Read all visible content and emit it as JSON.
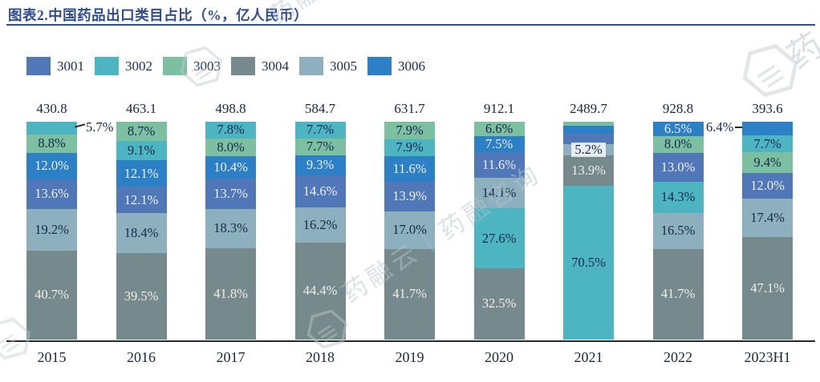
{
  "header": {
    "title": "图表2.中国药品出口类目占比（%，亿人民币）"
  },
  "legend": {
    "items": [
      {
        "label": "3001",
        "color": "#5078B9"
      },
      {
        "label": "3002",
        "color": "#4DB4C1"
      },
      {
        "label": "3003",
        "color": "#7CBFA1"
      },
      {
        "label": "3004",
        "color": "#76898C"
      },
      {
        "label": "3005",
        "color": "#8DB0BE"
      },
      {
        "label": "3006",
        "color": "#2C80C6"
      }
    ]
  },
  "watermark": {
    "brand_text": "药融云｜药融咨询",
    "corner_text": "药"
  },
  "chart_data": {
    "type": "bar",
    "subtype": "stacked-100-percent",
    "title": "中国药品出口类目占比",
    "unit": "%，亿人民币",
    "legend_position": "top",
    "grid": false,
    "categories": [
      "2015",
      "2016",
      "2017",
      "2018",
      "2019",
      "2020",
      "2021",
      "2022",
      "2023H1"
    ],
    "totals": [
      430.8,
      463.1,
      498.8,
      584.7,
      631.7,
      912.1,
      2489.7,
      928.8,
      393.6
    ],
    "series": [
      {
        "name": "3001",
        "color": "#5078B9",
        "values": [
          13.6,
          12.1,
          13.7,
          14.6,
          13.9,
          11.6,
          4.9,
          13.0,
          12.0
        ]
      },
      {
        "name": "3002",
        "color": "#4DB4C1",
        "values": [
          5.7,
          9.1,
          7.8,
          7.7,
          7.9,
          27.6,
          70.5,
          14.3,
          7.7
        ]
      },
      {
        "name": "3003",
        "color": "#7CBFA1",
        "values": [
          8.8,
          8.7,
          8.0,
          7.7,
          7.9,
          6.6,
          2.0,
          8.0,
          9.4
        ]
      },
      {
        "name": "3004",
        "color": "#76898C",
        "values": [
          40.7,
          39.5,
          41.8,
          44.4,
          41.7,
          32.5,
          13.9,
          41.7,
          47.1
        ]
      },
      {
        "name": "3005",
        "color": "#8DB0BE",
        "values": [
          19.2,
          18.4,
          18.3,
          16.2,
          17.0,
          14.1,
          5.2,
          16.5,
          17.4
        ]
      },
      {
        "name": "3006",
        "color": "#2C80C6",
        "values": [
          12.0,
          12.1,
          10.4,
          9.3,
          11.6,
          7.5,
          3.5,
          6.5,
          6.4
        ]
      }
    ],
    "stack_order_top_to_bottom": {
      "2015": [
        "3002",
        "3003",
        "3006",
        "3001",
        "3005",
        "3004"
      ],
      "2016": [
        "3003",
        "3002",
        "3006",
        "3001",
        "3005",
        "3004"
      ],
      "2017": [
        "3002",
        "3003",
        "3006",
        "3001",
        "3005",
        "3004"
      ],
      "2018": [
        "3002",
        "3003",
        "3006",
        "3001",
        "3005",
        "3004"
      ],
      "2019": [
        "3003",
        "3002",
        "3006",
        "3001",
        "3005",
        "3004"
      ],
      "2020": [
        "3003",
        "3006",
        "3001",
        "3005",
        "3002",
        "3004"
      ],
      "2021": [
        "3003",
        "3006",
        "3001",
        "3005",
        "3004",
        "3002"
      ],
      "2022": [
        "3006",
        "3003",
        "3001",
        "3002",
        "3005",
        "3004"
      ],
      "2023H1": [
        "3006",
        "3002",
        "3003",
        "3001",
        "3005",
        "3004"
      ]
    },
    "series_label_color": {
      "3001": "light",
      "3002": "dark",
      "3003": "dark",
      "3004": "light",
      "3005": "dark",
      "3006": "light"
    },
    "outside_callouts": [
      {
        "category": "2015",
        "series": "3002",
        "text": "5.7%",
        "side": "right"
      },
      {
        "category": "2023H1",
        "series": "3006",
        "text": "6.4%",
        "side": "left"
      }
    ],
    "unlabeled_segments": {
      "2021": [
        "3003",
        "3006",
        "3001"
      ]
    },
    "estimated_values_note": "2021 segments 3003/3006/3001 carry no printed labels; values estimated from pixel heights (remainder 10.4%)",
    "boxed_labels": [
      {
        "category": "2021",
        "series": "3005"
      }
    ]
  }
}
